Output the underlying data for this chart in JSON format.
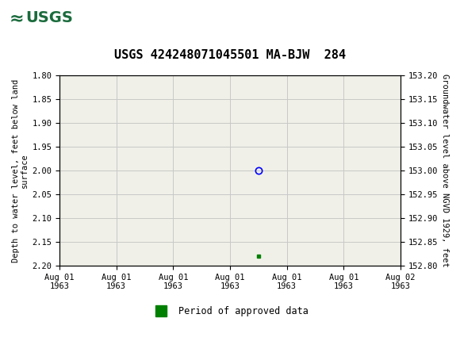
{
  "title": "USGS 424248071045501 MA-BJW  284",
  "ylabel_left": "Depth to water level, feet below land\nsurface",
  "ylabel_right": "Groundwater level above NGVD 1929, feet",
  "ylim_left_top": 1.8,
  "ylim_left_bottom": 2.2,
  "ylim_right_top": 153.2,
  "ylim_right_bottom": 152.8,
  "y_ticks_left": [
    1.8,
    1.85,
    1.9,
    1.95,
    2.0,
    2.05,
    2.1,
    2.15,
    2.2
  ],
  "y_ticks_right": [
    152.8,
    152.85,
    152.9,
    152.95,
    153.0,
    153.05,
    153.1,
    153.15,
    153.2
  ],
  "header_color": "#1a6b3c",
  "background_plot": "#f0f0e8",
  "grid_color": "#c8c8c8",
  "point_blue_x": 3.5,
  "point_blue_y": 2.0,
  "point_green_x": 3.5,
  "point_green_y": 2.18,
  "x_tick_positions": [
    0,
    1,
    2,
    3,
    4,
    5,
    6
  ],
  "x_tick_labels": [
    "Aug 01\n1963",
    "Aug 01\n1963",
    "Aug 01\n1963",
    "Aug 01\n1963",
    "Aug 01\n1963",
    "Aug 01\n1963",
    "Aug 02\n1963"
  ],
  "xlim": [
    0,
    6
  ],
  "legend_label": "Period of approved data",
  "legend_color": "#008000",
  "title_fontsize": 11,
  "axis_fontsize": 7.5,
  "ylabel_fontsize": 7.5
}
